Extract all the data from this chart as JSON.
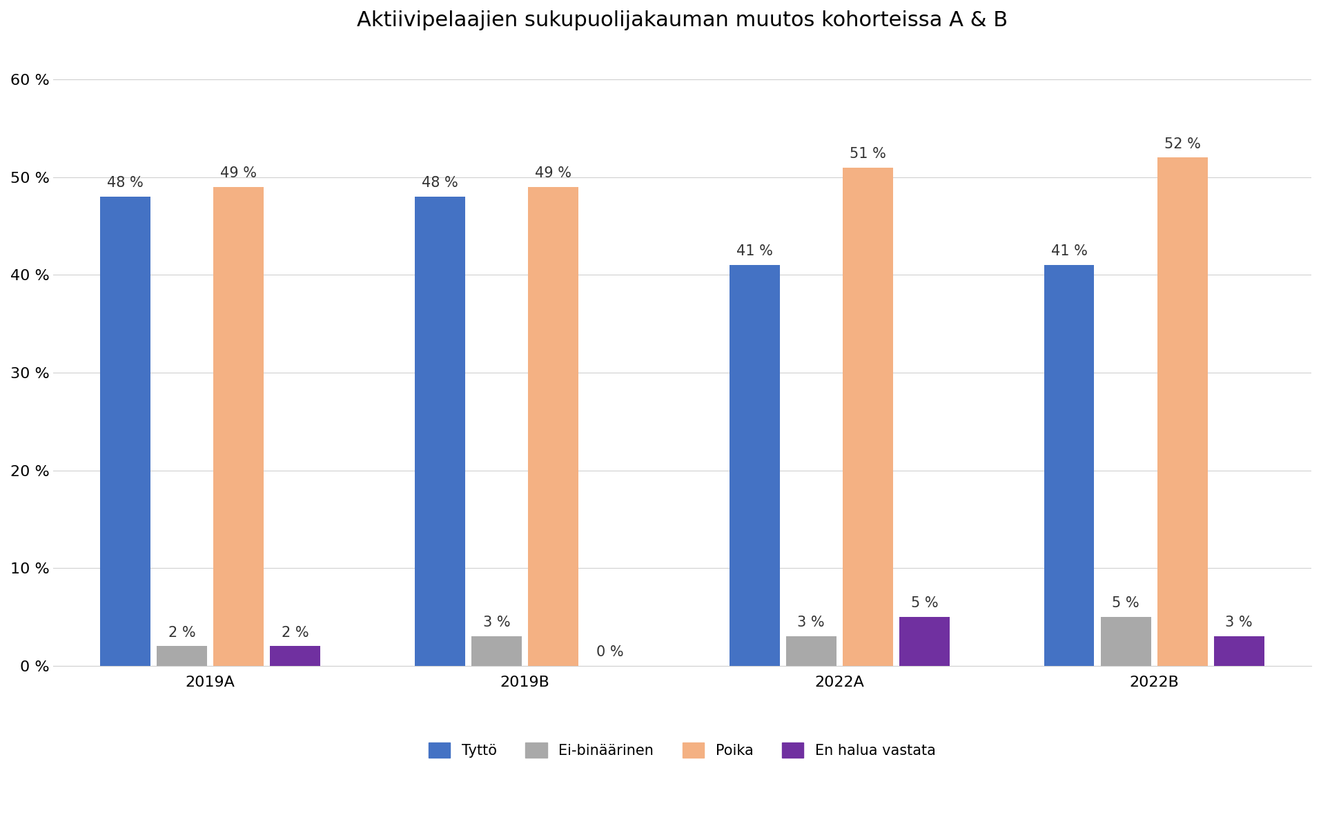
{
  "title": "Aktiivipelaajien sukupuolijakauman muutos kohorteissa A & B",
  "categories": [
    "2019A",
    "2019B",
    "2022A",
    "2022B"
  ],
  "series": {
    "Tyttö": [
      48,
      48,
      41,
      41
    ],
    "Ei-binäärinen": [
      2,
      3,
      3,
      5
    ],
    "Poika": [
      49,
      49,
      51,
      52
    ],
    "En halua vastata": [
      2,
      0,
      5,
      3
    ]
  },
  "colors": {
    "Tyttö": "#4472C4",
    "Ei-binäärinen": "#A9A9A9",
    "Poika": "#F4B183",
    "En halua vastata": "#7030A0"
  },
  "bar_width": 0.16,
  "ylim": [
    0,
    63
  ],
  "yticks": [
    0,
    10,
    20,
    30,
    40,
    50,
    60
  ],
  "ytick_labels": [
    "0 %",
    "10 %",
    "20 %",
    "30 %",
    "40 %",
    "50 %",
    "60 %"
  ],
  "label_fontsize": 15,
  "title_fontsize": 22,
  "tick_fontsize": 16,
  "legend_fontsize": 15,
  "background_color": "#FFFFFF",
  "grid_color": "#D0D0D0",
  "annotation_labels": {
    "Tyttö": [
      "48 %",
      "48 %",
      "41 %",
      "41 %"
    ],
    "Ei-binäärinen": [
      "2 %",
      "3 %",
      "3 %",
      "5 %"
    ],
    "Poika": [
      "49 %",
      "49 %",
      "51 %",
      "52 %"
    ],
    "En halua vastata": [
      "2 %",
      "0 %",
      "5 %",
      "3 %"
    ]
  }
}
